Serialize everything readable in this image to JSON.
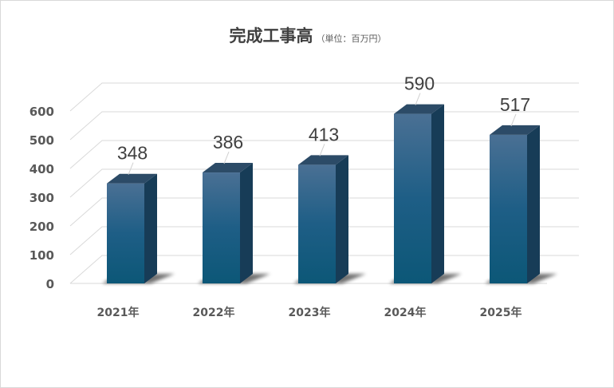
{
  "chart_data": {
    "type": "bar",
    "title": "完成工事高",
    "subtitle": "（単位：百万円）",
    "categories": [
      "2021年",
      "2022年",
      "2023年",
      "2024年",
      "2025年"
    ],
    "values": [
      348,
      386,
      413,
      590,
      517
    ],
    "yticks": [
      "0",
      "100",
      "200",
      "300",
      "400",
      "500",
      "600"
    ],
    "ylim": [
      0,
      600
    ],
    "grid": true,
    "legend": "none",
    "data_labels": true,
    "colors": {
      "bar_top": "#4a7094",
      "bar_mid": "#1e5e86",
      "bar_bottom": "#0c5777",
      "bar_side": "#173c57",
      "bar_cap": "#2c4b67",
      "grid": "#d9d9d9",
      "text": "#595959"
    }
  }
}
